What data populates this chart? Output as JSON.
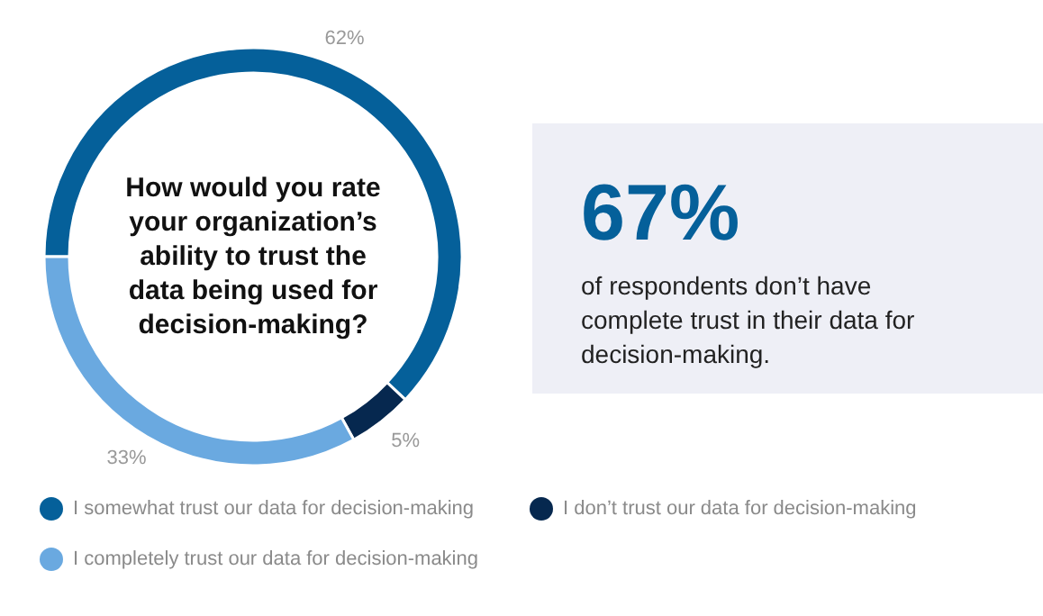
{
  "chart_data": {
    "type": "donut",
    "title": "How would you rate your organization’s ability to trust the data being used for decision-making?",
    "categories": [
      "I somewhat trust our data for decision-making",
      "I don’t trust our data for decision-making",
      "I completely trust our data for decision-making"
    ],
    "values": [
      62,
      5,
      33
    ],
    "colors": [
      "#05609a",
      "#06284f",
      "#6aa9e0"
    ],
    "value_labels": [
      "62%",
      "5%",
      "33%"
    ],
    "legend": "bottom",
    "annotations": [
      "67%",
      "of respondents don’t have complete trust in their data for decision-making."
    ]
  }
}
